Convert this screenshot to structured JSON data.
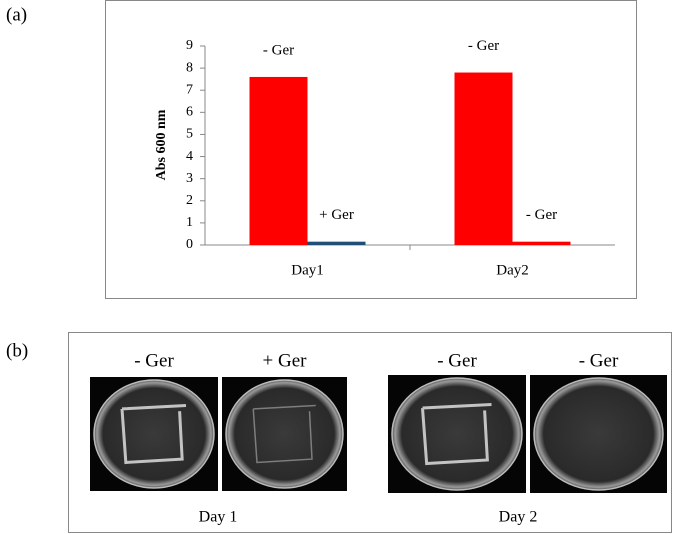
{
  "labels": [
    "(a)",
    "(b)"
  ],
  "chart_data": {
    "type": "bar",
    "ylabel": "Abs 600 nm",
    "categories": [
      "Day1",
      "Day2"
    ],
    "series": [
      {
        "color": "#ff0000",
        "values": [
          7.6,
          7.8
        ]
      },
      {
        "colors": [
          "#1f4e79",
          "#ff0000"
        ],
        "values": [
          0.15,
          0.15
        ]
      }
    ],
    "bar_labels": [
      [
        "- Ger",
        "- Ger"
      ],
      [
        "+ Ger",
        "- Ger"
      ]
    ],
    "ylim": [
      0,
      9
    ],
    "yticks": [
      0,
      1,
      2,
      3,
      4,
      5,
      6,
      7,
      8,
      9
    ]
  },
  "plates": {
    "groups": [
      {
        "name": "Day 1",
        "plates": [
          "- Ger",
          "+ Ger"
        ]
      },
      {
        "name": "Day 2",
        "plates": [
          "- Ger",
          "- Ger"
        ]
      }
    ]
  }
}
